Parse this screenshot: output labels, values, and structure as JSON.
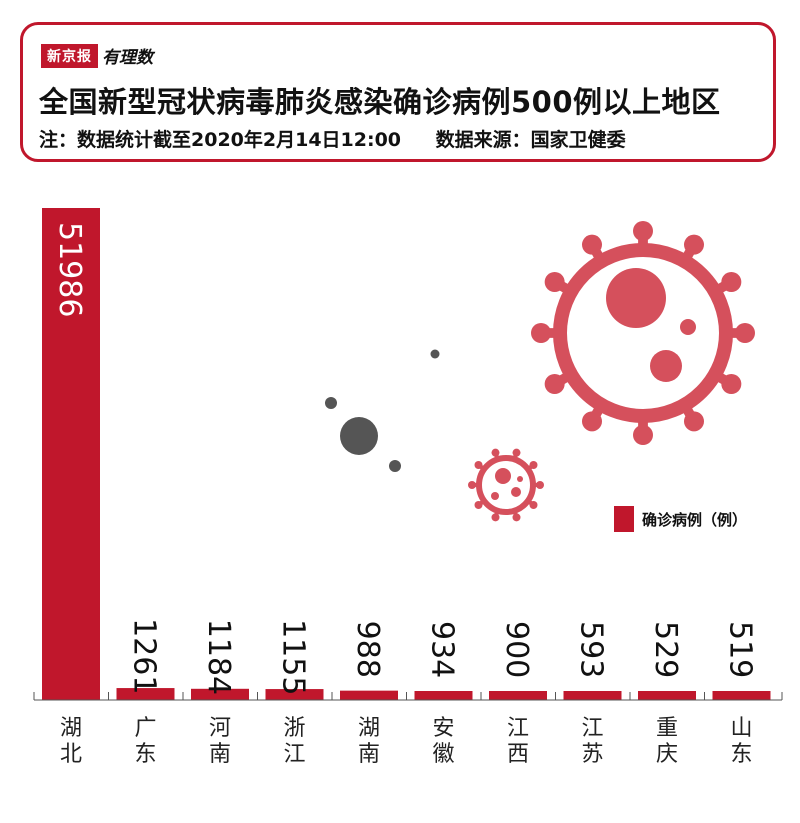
{
  "header": {
    "brand_name": "新京报",
    "brand_sub": "有理数",
    "title": "全国新型冠状病毒肺炎感染确诊病例500例以上地区",
    "note": "注：数据统计截至2020年2月14日12:00",
    "source": "数据来源：国家卫健委"
  },
  "colors": {
    "bar": "#c0172c",
    "virus": "#d5505c",
    "dots": "#555555"
  },
  "legend": {
    "label": "确诊病例（例）",
    "placement": "right"
  },
  "chart_data": {
    "type": "bar",
    "title": "全国新型冠状病毒肺炎感染确诊病例500例以上地区",
    "categories": [
      "湖北",
      "广东",
      "河南",
      "浙江",
      "湖南",
      "安徽",
      "江西",
      "江苏",
      "重庆",
      "山东"
    ],
    "category_lines": [
      [
        "湖",
        "北"
      ],
      [
        "广",
        "东"
      ],
      [
        "河",
        "南"
      ],
      [
        "浙",
        "江"
      ],
      [
        "湖",
        "南"
      ],
      [
        "安",
        "徽"
      ],
      [
        "江",
        "西"
      ],
      [
        "江",
        "苏"
      ],
      [
        "重",
        "庆"
      ],
      [
        "山",
        "东"
      ]
    ],
    "series": [
      {
        "name": "确诊病例（例）",
        "values": [
          51986,
          1261,
          1184,
          1155,
          988,
          934,
          900,
          593,
          529,
          519
        ]
      }
    ],
    "value_labels": [
      "51986",
      "1261",
      "1184",
      "1155",
      "988",
      "934",
      "900",
      "593",
      "529",
      "519"
    ],
    "ylim": [
      0,
      51986
    ],
    "grid": false,
    "legend_placement": "right"
  }
}
